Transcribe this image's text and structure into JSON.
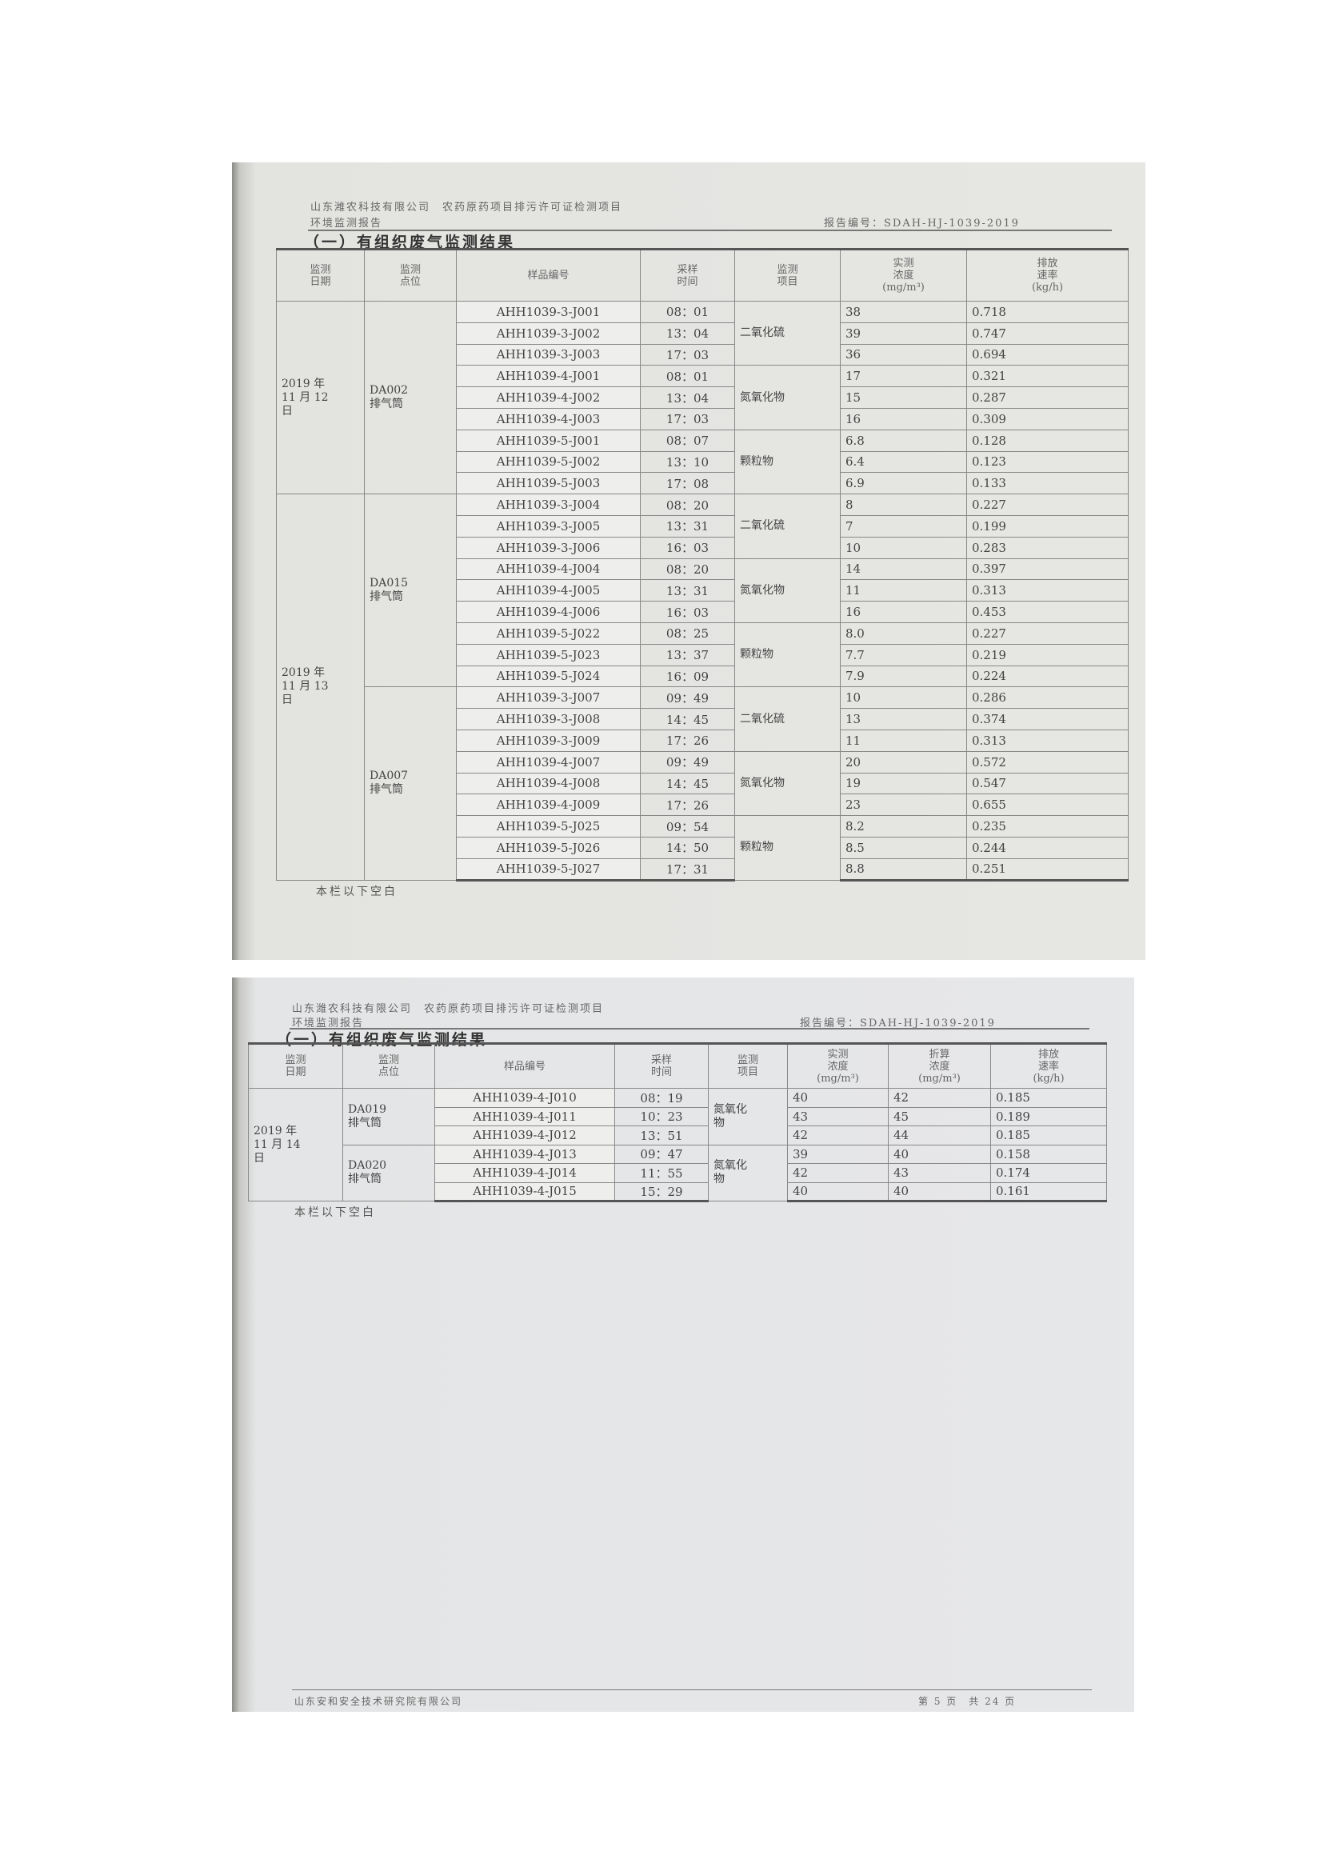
{
  "header": {
    "company_project": "山东潍农科技有限公司　农药原药项目排污许可证检测项目",
    "report_type": "环境监测报告",
    "report_no": "报告编号：SDAH-HJ-1039-2019"
  },
  "section_title": "（一）有组织废气监测结果",
  "columns1": [
    "监测\n日期",
    "监测\n点位",
    "样品编号",
    "采样\n时间",
    "监测\n项目",
    "实测\n浓度\n(mg/m³)",
    "排放\n速率\n(kg/h)"
  ],
  "columns2": [
    "监测\n日期",
    "监测\n点位",
    "样品编号",
    "采样\n时间",
    "监测\n项目",
    "实测\n浓度\n(mg/m³)",
    "折算\n浓度\n(mg/m³)",
    "排放\n速率\n(kg/h)"
  ],
  "table1": [
    {
      "date": "2019 年\n11 月 12\n日",
      "points": [
        {
          "point": "DA002\n排气筒",
          "items": [
            {
              "item": "二氧化硫",
              "rows": [
                [
                  "AHH1039-3-J001",
                  "08：01",
                  "38",
                  "0.718"
                ],
                [
                  "AHH1039-3-J002",
                  "13：04",
                  "39",
                  "0.747"
                ],
                [
                  "AHH1039-3-J003",
                  "17：03",
                  "36",
                  "0.694"
                ]
              ]
            },
            {
              "item": "氮氧化物",
              "rows": [
                [
                  "AHH1039-4-J001",
                  "08：01",
                  "17",
                  "0.321"
                ],
                [
                  "AHH1039-4-J002",
                  "13：04",
                  "15",
                  "0.287"
                ],
                [
                  "AHH1039-4-J003",
                  "17：03",
                  "16",
                  "0.309"
                ]
              ]
            },
            {
              "item": "颗粒物",
              "rows": [
                [
                  "AHH1039-5-J001",
                  "08：07",
                  "6.8",
                  "0.128"
                ],
                [
                  "AHH1039-5-J002",
                  "13：10",
                  "6.4",
                  "0.123"
                ],
                [
                  "AHH1039-5-J003",
                  "17：08",
                  "6.9",
                  "0.133"
                ]
              ]
            }
          ]
        }
      ]
    },
    {
      "date": "2019 年\n11 月 13\n日",
      "points": [
        {
          "point": "DA015\n排气筒",
          "items": [
            {
              "item": "二氧化硫",
              "rows": [
                [
                  "AHH1039-3-J004",
                  "08：20",
                  "8",
                  "0.227"
                ],
                [
                  "AHH1039-3-J005",
                  "13：31",
                  "7",
                  "0.199"
                ],
                [
                  "AHH1039-3-J006",
                  "16：03",
                  "10",
                  "0.283"
                ]
              ]
            },
            {
              "item": "氮氧化物",
              "rows": [
                [
                  "AHH1039-4-J004",
                  "08：20",
                  "14",
                  "0.397"
                ],
                [
                  "AHH1039-4-J005",
                  "13：31",
                  "11",
                  "0.313"
                ],
                [
                  "AHH1039-4-J006",
                  "16：03",
                  "16",
                  "0.453"
                ]
              ]
            },
            {
              "item": "颗粒物",
              "rows": [
                [
                  "AHH1039-5-J022",
                  "08：25",
                  "8.0",
                  "0.227"
                ],
                [
                  "AHH1039-5-J023",
                  "13：37",
                  "7.7",
                  "0.219"
                ],
                [
                  "AHH1039-5-J024",
                  "16：09",
                  "7.9",
                  "0.224"
                ]
              ]
            }
          ]
        },
        {
          "point": "DA007\n排气筒",
          "items": [
            {
              "item": "二氧化硫",
              "rows": [
                [
                  "AHH1039-3-J007",
                  "09：49",
                  "10",
                  "0.286"
                ],
                [
                  "AHH1039-3-J008",
                  "14：45",
                  "13",
                  "0.374"
                ],
                [
                  "AHH1039-3-J009",
                  "17：26",
                  "11",
                  "0.313"
                ]
              ]
            },
            {
              "item": "氮氧化物",
              "rows": [
                [
                  "AHH1039-4-J007",
                  "09：49",
                  "20",
                  "0.572"
                ],
                [
                  "AHH1039-4-J008",
                  "14：45",
                  "19",
                  "0.547"
                ],
                [
                  "AHH1039-4-J009",
                  "17：26",
                  "23",
                  "0.655"
                ]
              ]
            },
            {
              "item": "颗粒物",
              "rows": [
                [
                  "AHH1039-5-J025",
                  "09：54",
                  "8.2",
                  "0.235"
                ],
                [
                  "AHH1039-5-J026",
                  "14：50",
                  "8.5",
                  "0.244"
                ],
                [
                  "AHH1039-5-J027",
                  "17：31",
                  "8.8",
                  "0.251"
                ]
              ]
            }
          ]
        }
      ]
    }
  ],
  "table2": [
    {
      "date": "2019 年\n11 月 14\n日",
      "points": [
        {
          "point": "DA019\n排气筒",
          "items": [
            {
              "item": "氮氧化\n物",
              "rows": [
                [
                  "AHH1039-4-J010",
                  "08：19",
                  "40",
                  "42",
                  "0.185"
                ],
                [
                  "AHH1039-4-J011",
                  "10：23",
                  "43",
                  "45",
                  "0.189"
                ],
                [
                  "AHH1039-4-J012",
                  "13：51",
                  "42",
                  "44",
                  "0.185"
                ]
              ]
            }
          ]
        },
        {
          "point": "DA020\n排气筒",
          "items": [
            {
              "item": "氮氧化\n物",
              "rows": [
                [
                  "AHH1039-4-J013",
                  "09：47",
                  "39",
                  "40",
                  "0.158"
                ],
                [
                  "AHH1039-4-J014",
                  "11：55",
                  "42",
                  "43",
                  "0.174"
                ],
                [
                  "AHH1039-4-J015",
                  "15：29",
                  "40",
                  "40",
                  "0.161"
                ]
              ]
            }
          ]
        }
      ]
    }
  ],
  "blank_note": "本栏以下空白",
  "footer": {
    "institute": "山东安和安全技术研究院有限公司",
    "page": "第 5 页　共 24 页"
  }
}
